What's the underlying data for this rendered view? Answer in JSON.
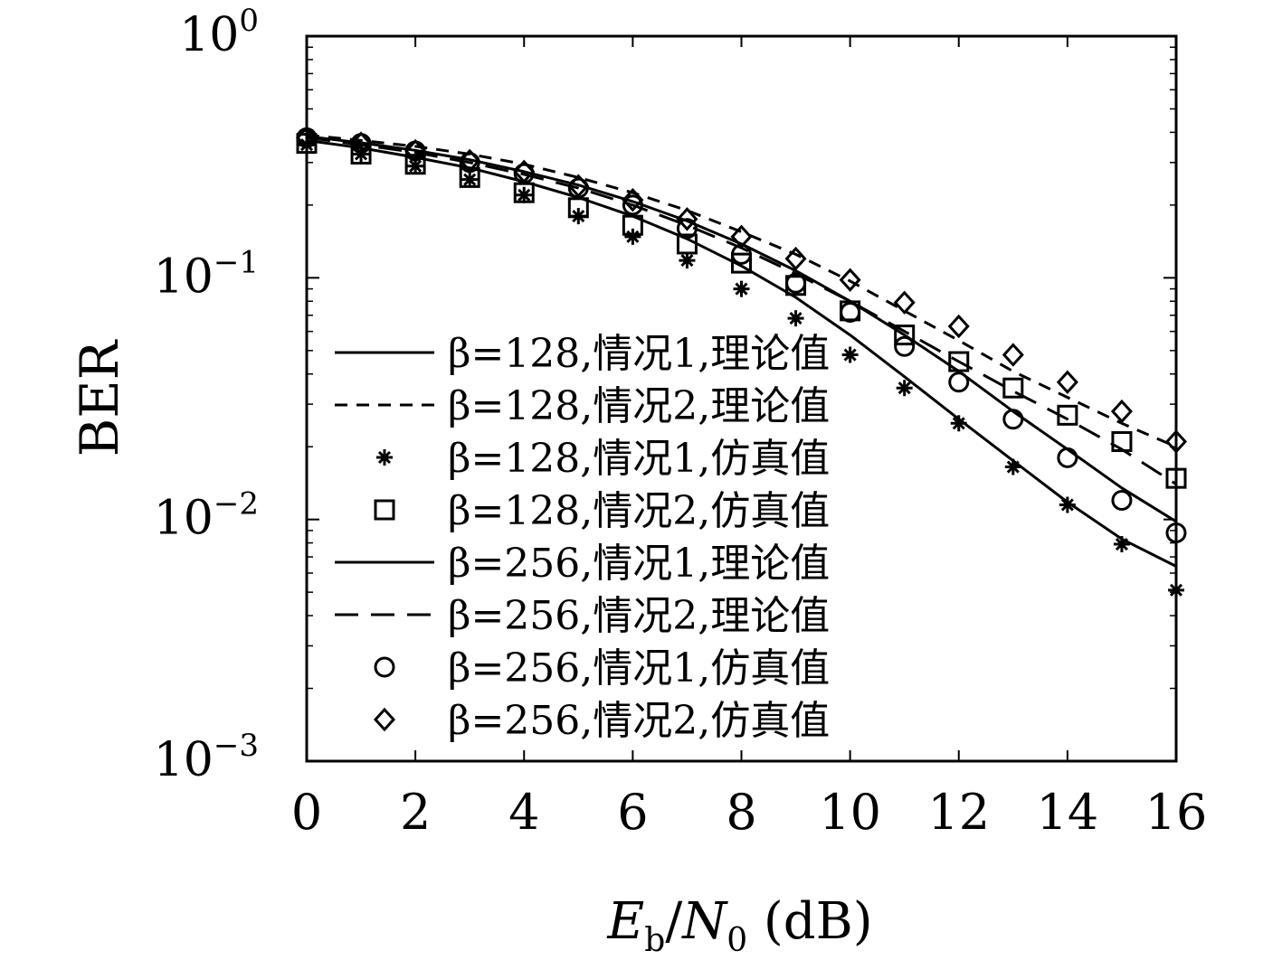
{
  "chart_data": {
    "type": "line",
    "title": "",
    "xlabel": "E_b/N_0 (dB)",
    "xlabel_parts": {
      "E": "E",
      "b": "b",
      "slash": "/",
      "N": "N",
      "zero": "0",
      "unit": " (dB)"
    },
    "ylabel": "BER",
    "xlim": [
      0,
      16
    ],
    "ylim": [
      0.001,
      1
    ],
    "y_scale": "log",
    "grid": false,
    "legend_position": "left-center",
    "x_ticks": [
      0,
      2,
      4,
      6,
      8,
      10,
      12,
      14,
      16
    ],
    "x_tick_labels": [
      "0",
      "2",
      "4",
      "6",
      "8",
      "10",
      "12",
      "14",
      "16"
    ],
    "y_ticks": [
      {
        "value": 1,
        "base": "10",
        "exp": "0"
      },
      {
        "value": 0.1,
        "base": "10",
        "exp": "−1"
      },
      {
        "value": 0.01,
        "base": "10",
        "exp": "−2"
      },
      {
        "value": 0.001,
        "base": "10",
        "exp": "−3"
      }
    ],
    "series": [
      {
        "name": "β=128,情况1,理论值",
        "style": "solid",
        "marker": "none",
        "x": [
          0,
          1,
          2,
          3,
          4,
          5,
          6,
          7,
          8,
          9,
          10,
          11,
          12,
          13,
          14,
          15,
          16
        ],
        "y": [
          0.37,
          0.345,
          0.315,
          0.285,
          0.25,
          0.215,
          0.18,
          0.145,
          0.112,
          0.083,
          0.058,
          0.039,
          0.026,
          0.0175,
          0.0118,
          0.0083,
          0.0064
        ]
      },
      {
        "name": "β=128,情况2,理论值",
        "style": "dashed",
        "marker": "none",
        "x": [
          0,
          1,
          2,
          3,
          4,
          5,
          6,
          7,
          8,
          9,
          10,
          11,
          12,
          13,
          14,
          15,
          16
        ],
        "y": [
          0.39,
          0.37,
          0.35,
          0.325,
          0.295,
          0.26,
          0.225,
          0.19,
          0.155,
          0.125,
          0.097,
          0.073,
          0.055,
          0.041,
          0.032,
          0.025,
          0.02
        ]
      },
      {
        "name": "β=128,情况1,仿真值",
        "style": "none",
        "marker": "star",
        "x": [
          0,
          1,
          2,
          3,
          4,
          5,
          6,
          7,
          8,
          9,
          10,
          11,
          12,
          13,
          14,
          15,
          16
        ],
        "y": [
          0.355,
          0.325,
          0.29,
          0.255,
          0.22,
          0.18,
          0.148,
          0.118,
          0.09,
          0.068,
          0.048,
          0.035,
          0.025,
          0.0165,
          0.0115,
          0.0079,
          0.0051
        ]
      },
      {
        "name": "β=128,情况2,仿真值",
        "style": "none",
        "marker": "square",
        "x": [
          0,
          1,
          2,
          3,
          4,
          5,
          6,
          7,
          8,
          9,
          10,
          11,
          12,
          13,
          14,
          15,
          16
        ],
        "y": [
          0.36,
          0.325,
          0.295,
          0.26,
          0.225,
          0.195,
          0.165,
          0.138,
          0.115,
          0.093,
          0.073,
          0.058,
          0.045,
          0.035,
          0.027,
          0.021,
          0.0148
        ]
      },
      {
        "name": "β=256,情况1,理论值",
        "style": "solid",
        "marker": "none",
        "x": [
          0,
          1,
          2,
          3,
          4,
          5,
          6,
          7,
          8,
          9,
          10,
          11,
          12,
          13,
          14,
          15,
          16
        ],
        "y": [
          0.385,
          0.362,
          0.337,
          0.308,
          0.275,
          0.242,
          0.207,
          0.172,
          0.138,
          0.107,
          0.08,
          0.058,
          0.041,
          0.028,
          0.0195,
          0.0135,
          0.0098
        ]
      },
      {
        "name": "β=256,情况2,理论值",
        "style": "longdash",
        "marker": "none",
        "x": [
          0,
          1,
          2,
          3,
          4,
          5,
          6,
          7,
          8,
          9,
          10,
          11,
          12,
          13,
          14,
          15,
          16
        ],
        "y": [
          0.38,
          0.355,
          0.33,
          0.3,
          0.268,
          0.235,
          0.2,
          0.165,
          0.133,
          0.104,
          0.08,
          0.06,
          0.045,
          0.034,
          0.026,
          0.0195,
          0.014
        ]
      },
      {
        "name": "β=256,情况1,仿真值",
        "style": "none",
        "marker": "circle",
        "x": [
          0,
          1,
          2,
          3,
          4,
          5,
          6,
          7,
          8,
          9,
          10,
          11,
          12,
          13,
          14,
          15,
          16
        ],
        "y": [
          0.38,
          0.36,
          0.335,
          0.3,
          0.27,
          0.235,
          0.2,
          0.16,
          0.125,
          0.095,
          0.072,
          0.052,
          0.037,
          0.026,
          0.018,
          0.012,
          0.0088
        ]
      },
      {
        "name": "β=256,情况2,仿真值",
        "style": "none",
        "marker": "diamond",
        "x": [
          0,
          1,
          2,
          3,
          4,
          5,
          6,
          7,
          8,
          9,
          10,
          11,
          12,
          13,
          14,
          15,
          16
        ],
        "y": [
          0.38,
          0.36,
          0.335,
          0.305,
          0.275,
          0.24,
          0.21,
          0.175,
          0.148,
          0.12,
          0.098,
          0.079,
          0.063,
          0.048,
          0.037,
          0.028,
          0.021
        ]
      }
    ]
  }
}
